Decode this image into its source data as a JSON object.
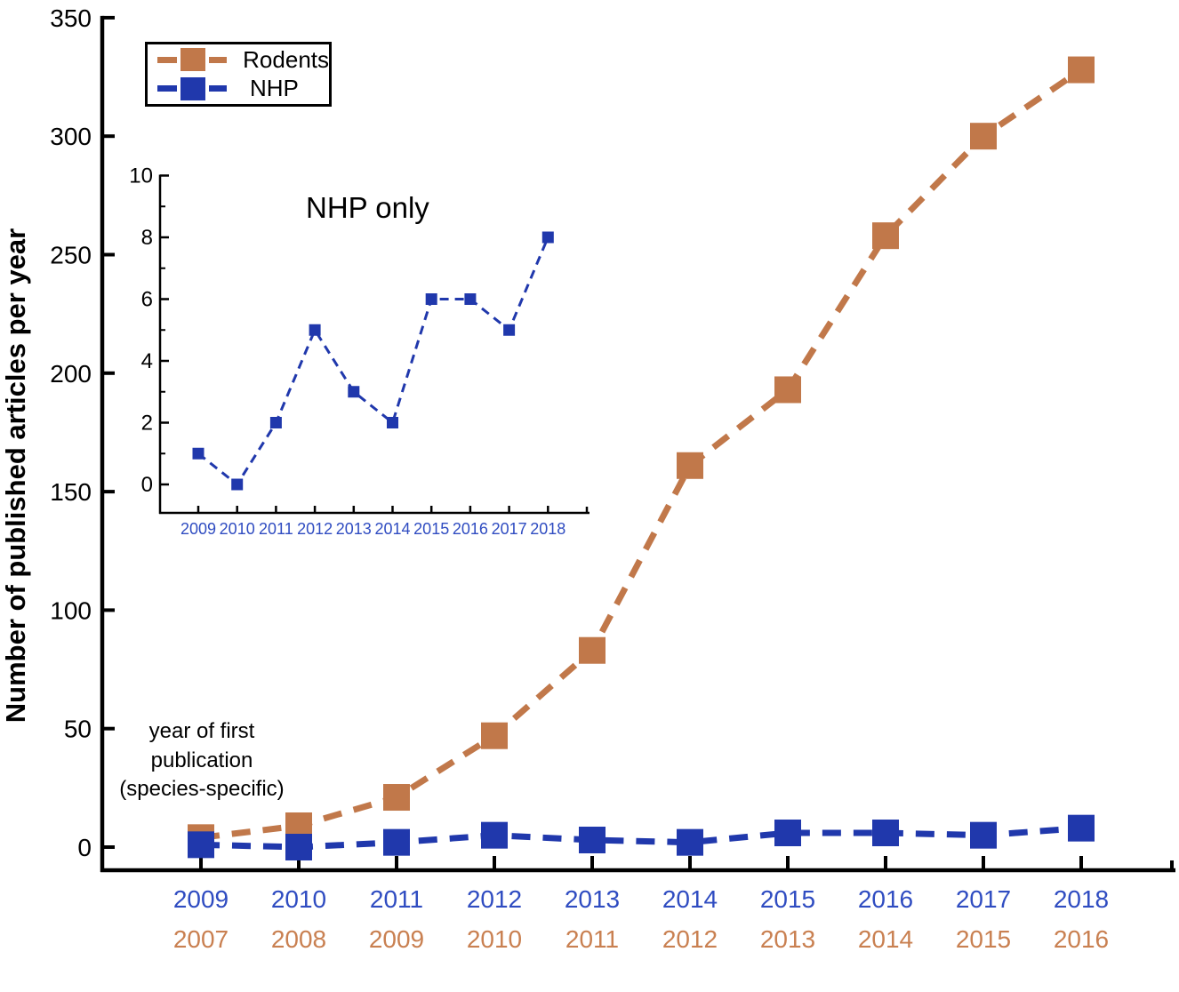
{
  "figure": {
    "background": "#ffffff",
    "annotation_lines": [
      "year of first",
      "publication",
      "(species-specific)"
    ]
  },
  "chart_data": [
    {
      "id": "main",
      "type": "line",
      "title": "",
      "ylabel": "Number of published articles per year",
      "ylim": [
        0,
        350
      ],
      "yticks": [
        0,
        50,
        100,
        150,
        200,
        250,
        300,
        350
      ],
      "grid": false,
      "legend_position": "top-left",
      "x_axis_rows": [
        {
          "name": "nhp-years",
          "color": "#2f4cc1",
          "labels": [
            "2009",
            "2010",
            "2011",
            "2012",
            "2013",
            "2014",
            "2015",
            "2016",
            "2017",
            "2018"
          ]
        },
        {
          "name": "rodent-years",
          "color": "#c98051",
          "labels": [
            "2007",
            "2008",
            "2009",
            "2010",
            "2011",
            "2012",
            "2013",
            "2014",
            "2015",
            "2016"
          ]
        }
      ],
      "annotation": "year of first publication (species-specific)",
      "series": [
        {
          "name": "Rodents",
          "color": "#c1784a",
          "marker": "square",
          "linestyle": "dashed",
          "values": [
            4,
            9,
            21,
            47,
            83,
            161,
            193,
            258,
            300,
            328
          ]
        },
        {
          "name": "NHP",
          "color": "#2038ac",
          "marker": "square",
          "linestyle": "dashed",
          "values": [
            1,
            0,
            2,
            5,
            3,
            2,
            6,
            6,
            5,
            8
          ]
        }
      ]
    },
    {
      "id": "inset",
      "type": "line",
      "title": "NHP only",
      "ylim": [
        0,
        10
      ],
      "yticks": [
        0,
        2,
        4,
        6,
        8,
        10
      ],
      "grid": false,
      "x_labels": [
        "2009",
        "2010",
        "2011",
        "2012",
        "2013",
        "2014",
        "2015",
        "2016",
        "2017",
        "2018"
      ],
      "x_label_color": "#2f4cc1",
      "series": [
        {
          "name": "NHP",
          "color": "#2038ac",
          "marker": "square",
          "linestyle": "dashed",
          "values": [
            1,
            0,
            2,
            5,
            3,
            2,
            6,
            6,
            5,
            8
          ]
        }
      ]
    }
  ]
}
